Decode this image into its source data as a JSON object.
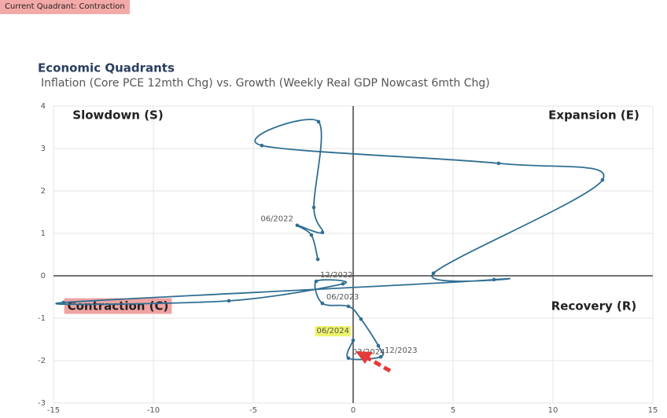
{
  "tag": "Current Quadrant: Contraction",
  "chart_data": {
    "type": "line",
    "title": "Economic Quadrants",
    "subtitle": "Inflation (Core PCE 12mth Chg) vs. Growth (Weekly Real GDP Nowcast 6mth Chg)",
    "quadrants": {
      "slowdown": "Slowdown (S)",
      "expansion": "Expansion (E)",
      "contraction": "Contraction (C)",
      "recovery": "Recovery (R)"
    },
    "current_quadrant": "contraction",
    "quadrant_highlight_color": "#f0a3a3",
    "label_highlight_color": "#eef46a",
    "x": [
      -1.77,
      -2.09,
      -2.8,
      -1.54,
      -1.97,
      -1.73,
      -4.57,
      7.28,
      12.48,
      4.02,
      7.05,
      -14.5,
      -6.22,
      -0.51,
      -1.85,
      -1.54,
      -0.24,
      0.39,
      1.26,
      1.38,
      -0.24,
      0
    ],
    "series": [
      {
        "color": "#2f6f92",
        "values": [
          0.39,
          0.96,
          1.19,
          1.02,
          1.61,
          3.63,
          3.07,
          2.65,
          2.26,
          0.06,
          -0.09,
          -0.63,
          -0.59,
          -0.19,
          -0.13,
          -0.65,
          -0.72,
          -1.02,
          -1.65,
          -1.91,
          -1.94,
          -1.52
        ],
        "point_labels": [
          null,
          null,
          "06/2022",
          null,
          null,
          null,
          null,
          null,
          null,
          null,
          null,
          null,
          null,
          null,
          "12/2022",
          "06/2023",
          null,
          null,
          null,
          "12/2023",
          "03/2024",
          "06/2024"
        ]
      }
    ],
    "xlim": [
      -15,
      15
    ],
    "xticks": [
      -15,
      -10,
      -5,
      0,
      5,
      10,
      15
    ],
    "ylim": [
      -3,
      4
    ],
    "yticks": [
      -3,
      -2,
      -1,
      0,
      1,
      2,
      3,
      4
    ],
    "grid": true
  }
}
